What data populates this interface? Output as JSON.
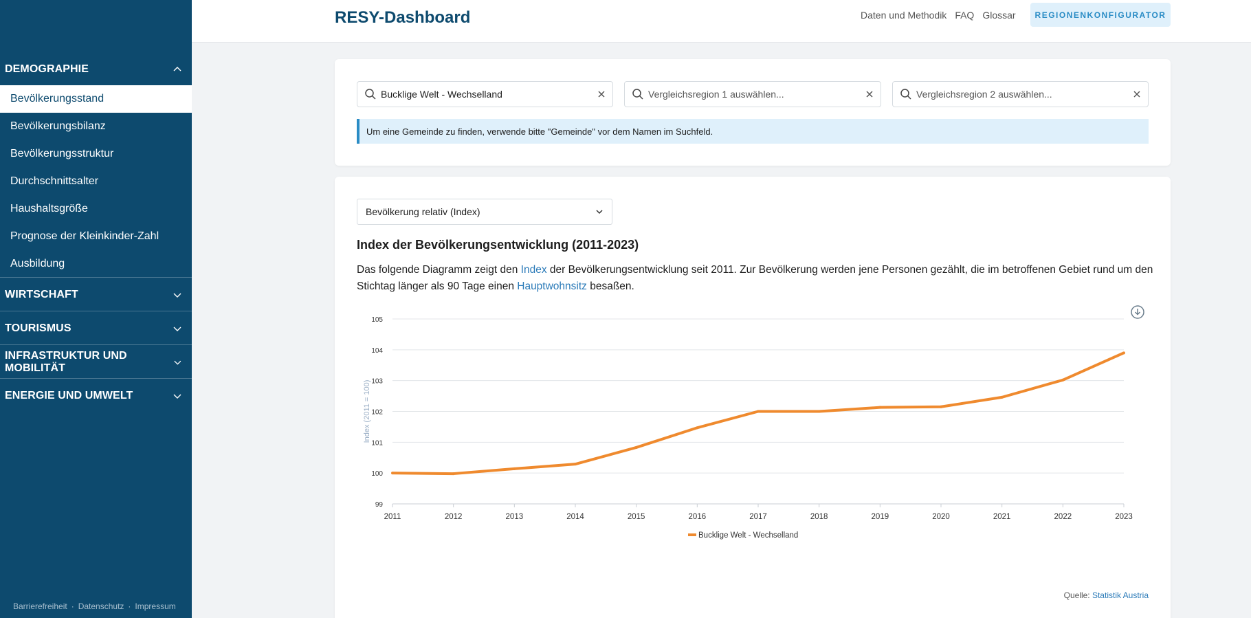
{
  "sidebar": {
    "sections": [
      {
        "label": "DEMOGRAPHIE",
        "expanded": true
      },
      {
        "label": "WIRTSCHAFT",
        "expanded": false
      },
      {
        "label": "TOURISMUS",
        "expanded": false
      },
      {
        "label": "INFRASTRUKTUR UND MOBILITÄT",
        "expanded": false
      },
      {
        "label": "ENERGIE UND UMWELT",
        "expanded": false
      }
    ],
    "items": [
      {
        "label": "Bevölkerungsstand",
        "active": true
      },
      {
        "label": "Bevölkerungsbilanz",
        "active": false
      },
      {
        "label": "Bevölkerungsstruktur",
        "active": false
      },
      {
        "label": "Durchschnittsalter",
        "active": false
      },
      {
        "label": "Haushaltsgröße",
        "active": false
      },
      {
        "label": "Prognose der Kleinkinder-Zahl",
        "active": false
      },
      {
        "label": "Ausbildung",
        "active": false
      }
    ],
    "footer": {
      "accessibility": "Barrierefreiheit",
      "privacy": "Datenschutz",
      "imprint": "Impressum",
      "separator": "·"
    }
  },
  "header": {
    "title": "RESY-Dashboard",
    "nav": [
      "Daten und Methodik",
      "FAQ",
      "Glossar"
    ],
    "configurator_label": "REGIONENKONFIGURATOR"
  },
  "search": {
    "region_value": "Bucklige Welt - Wechselland",
    "compare1_placeholder": "Vergleichsregion 1 auswählen...",
    "compare2_placeholder": "Vergleichsregion 2 auswählen...",
    "info": "Um eine Gemeinde zu finden, verwende bitte \"Gemeinde\" vor dem Namen im Suchfeld."
  },
  "content": {
    "select_value": "Bevölkerung relativ (Index)",
    "title": "Index der Bevölkerungsentwicklung (2011-2023)",
    "desc_1": "Das folgende Diagramm zeigt den ",
    "desc_link1": "Index",
    "desc_2": " der Bevölkerungsentwicklung seit 2011. Zur Bevölkerung werden jene Personen gezählt, die im betroffenen Gebiet rund um den Stichtag länger als 90 Tage einen ",
    "desc_link2": "Hauptwohnsitz",
    "desc_3": " besaßen.",
    "source_label": "Quelle: ",
    "source_link": "Statistik Austria"
  },
  "colors": {
    "sidebar": "#0d4a6e",
    "accent": "#2a8cc5",
    "line": "#ef8a2e"
  },
  "chart_data": {
    "type": "line",
    "x": [
      2011,
      2012,
      2013,
      2014,
      2015,
      2016,
      2017,
      2018,
      2019,
      2020,
      2021,
      2022,
      2023
    ],
    "series": [
      {
        "name": "Bucklige Welt - Wechselland",
        "values": [
          100.0,
          99.98,
          100.14,
          100.29,
          100.83,
          101.47,
          102.0,
          102.0,
          102.13,
          102.15,
          102.46,
          103.02,
          103.9
        ]
      }
    ],
    "ylabel": "Index (2011 = 100)",
    "ylim": [
      99,
      105
    ],
    "yticks": [
      99,
      100,
      101,
      102,
      103,
      104,
      105
    ],
    "grid": true,
    "legend": "bottom-center"
  }
}
